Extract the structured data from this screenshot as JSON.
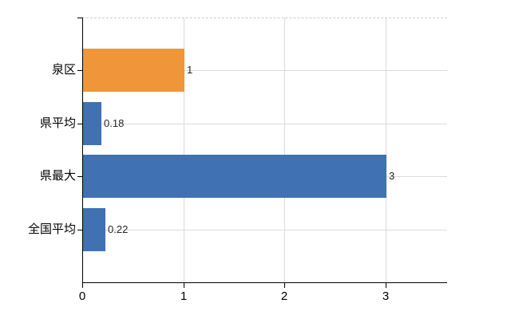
{
  "chart_data": {
    "type": "bar",
    "orientation": "horizontal",
    "title": "",
    "xlabel": "",
    "ylabel": "",
    "categories": [
      "泉区",
      "県平均",
      "県最大",
      "全国平均"
    ],
    "values": [
      1,
      0.18,
      3,
      0.22
    ],
    "value_labels": [
      "1",
      "0.18",
      "3",
      "0.22"
    ],
    "bar_colors": [
      "#ee9639",
      "#3f71b3",
      "#3f71b3",
      "#3f71b3"
    ],
    "xlim": [
      0,
      3.6
    ],
    "xticks": [
      0,
      1,
      2,
      3
    ],
    "xtick_labels": [
      "0",
      "1",
      "2",
      "3"
    ],
    "grid": true,
    "legend": false,
    "colors": {
      "background": "#ffffff",
      "axis": "#000000",
      "gridline": "#d7ddd7",
      "top_border": "#c9c9c9",
      "bar_orange": "#ee9639",
      "bar_blue": "#3f71b3",
      "value_label": "#262626",
      "tick_label": "#000000"
    }
  }
}
